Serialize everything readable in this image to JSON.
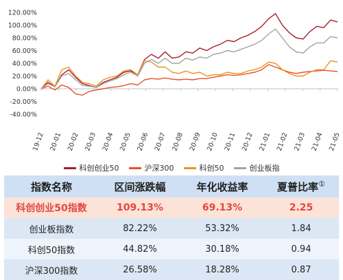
{
  "chart_data": {
    "type": "line",
    "y_ticks": [
      "-40.00%",
      "-20.00%",
      "0.00%",
      "20.00%",
      "40.00%",
      "60.00%",
      "80.00%",
      "100.00%",
      "120.00%"
    ],
    "ylim": [
      -40,
      120
    ],
    "x_ticks": [
      "19-12",
      "20-01",
      "20-02",
      "20-03",
      "20-04",
      "20-05",
      "20-06",
      "20-07",
      "20-08",
      "20-09",
      "20-10",
      "20-11",
      "20-12",
      "21-01",
      "21-02",
      "21-03",
      "21-04",
      "21-05"
    ],
    "series": [
      {
        "name": "科创创业50",
        "color": "#a81c2e",
        "values": [
          0,
          10,
          3,
          22,
          30,
          18,
          8,
          5,
          2,
          10,
          14,
          18,
          26,
          28,
          22,
          46,
          54,
          48,
          58,
          48,
          50,
          58,
          56,
          64,
          60,
          66,
          70,
          76,
          74,
          80,
          84,
          90,
          98,
          110,
          118,
          100,
          88,
          80,
          78,
          90,
          98,
          96,
          108,
          105
        ]
      },
      {
        "name": "沪深300",
        "color": "#e8502a",
        "values": [
          0,
          4,
          -2,
          6,
          2,
          -8,
          -10,
          -4,
          -2,
          0,
          2,
          3,
          5,
          8,
          6,
          14,
          16,
          15,
          17,
          15,
          14,
          15,
          14,
          16,
          16,
          18,
          20,
          22,
          21,
          22,
          24,
          26,
          30,
          38,
          34,
          30,
          26,
          24,
          26,
          27,
          28,
          29,
          28,
          27
        ]
      },
      {
        "name": "科创50",
        "color": "#f0901e",
        "values": [
          0,
          14,
          4,
          30,
          34,
          20,
          10,
          8,
          4,
          14,
          18,
          20,
          28,
          30,
          22,
          44,
          42,
          34,
          34,
          26,
          24,
          28,
          24,
          26,
          20,
          22,
          22,
          26,
          24,
          24,
          28,
          30,
          34,
          42,
          40,
          30,
          24,
          20,
          20,
          26,
          30,
          30,
          44,
          42
        ]
      },
      {
        "name": "创业板指",
        "color": "#a3a3a3",
        "values": [
          0,
          8,
          3,
          20,
          24,
          14,
          5,
          4,
          2,
          8,
          12,
          16,
          22,
          26,
          20,
          40,
          46,
          40,
          48,
          40,
          40,
          48,
          45,
          50,
          48,
          54,
          56,
          60,
          58,
          62,
          66,
          70,
          76,
          86,
          94,
          80,
          66,
          58,
          56,
          66,
          72,
          72,
          82,
          80
        ]
      }
    ]
  },
  "legend": {
    "items": [
      "科创创业50",
      "沪深300",
      "科创50",
      "创业板指"
    ]
  },
  "table": {
    "headers": [
      "指数名称",
      "区间涨跌幅",
      "年化收益率",
      "夏普比率"
    ],
    "footnote_mark": "①",
    "rows": [
      [
        "科创创业50指数",
        "109.13%",
        "69.13%",
        "2.25"
      ],
      [
        "创业板指数",
        "82.22%",
        "53.32%",
        "1.84"
      ],
      [
        "科创50指数",
        "44.82%",
        "30.18%",
        "0.94"
      ],
      [
        "沪深300指数",
        "26.58%",
        "18.28%",
        "0.87"
      ]
    ]
  }
}
